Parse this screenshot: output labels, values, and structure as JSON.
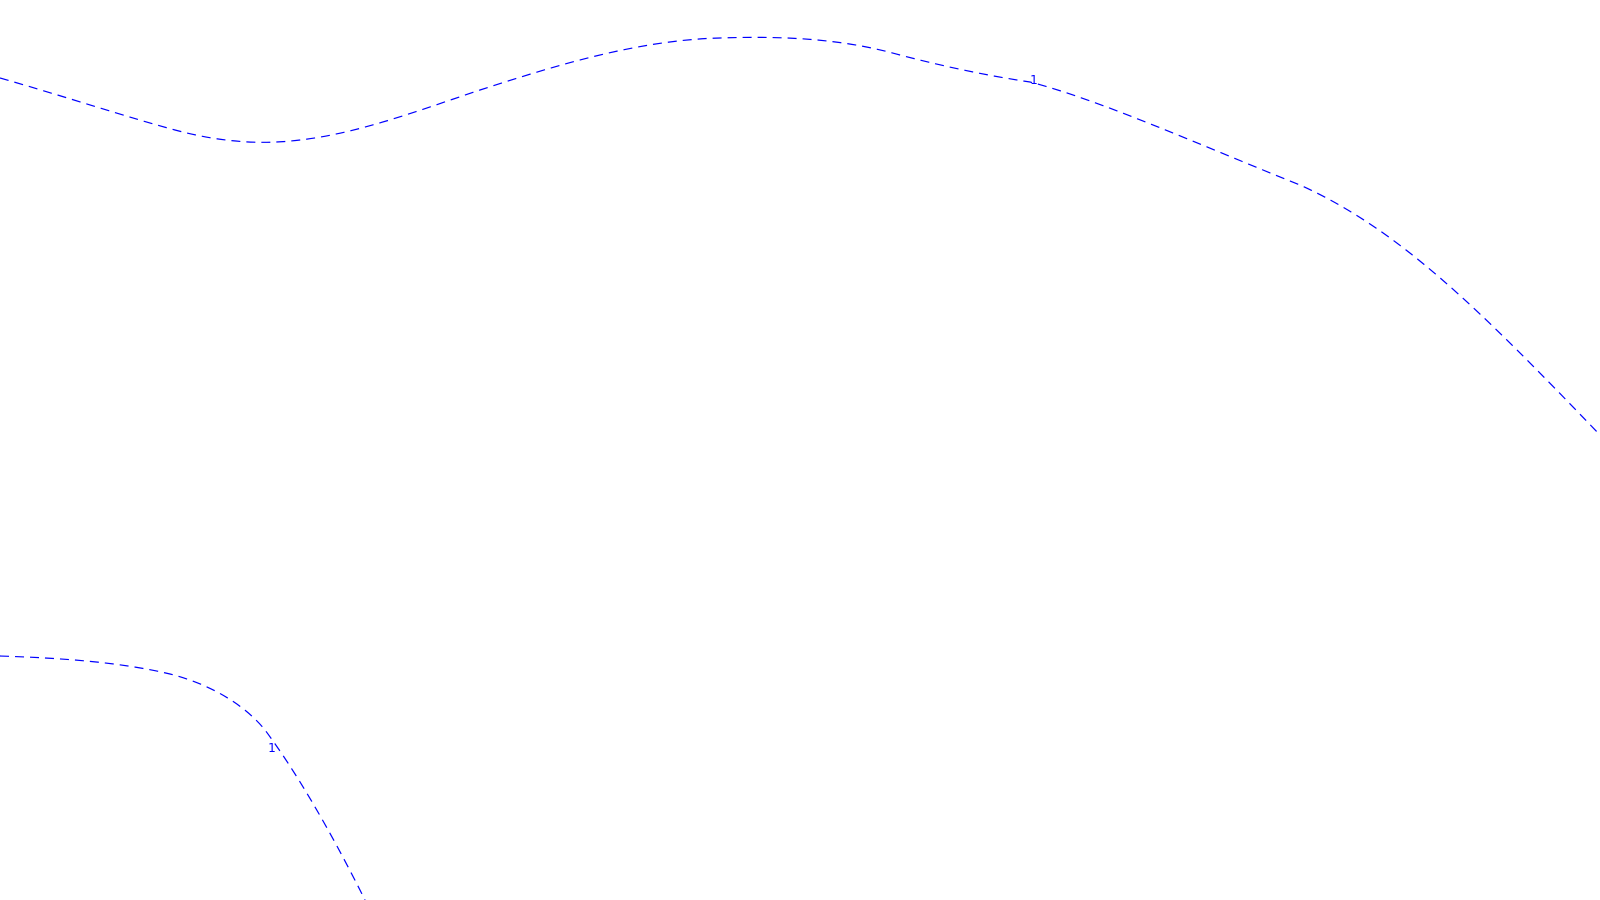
{
  "map": {
    "background_color": "#ffffff",
    "contour_color": "#0000ff",
    "contours": [
      {
        "id": "contour-top",
        "label": "1"
      },
      {
        "id": "contour-bottom",
        "label": "1"
      }
    ]
  }
}
